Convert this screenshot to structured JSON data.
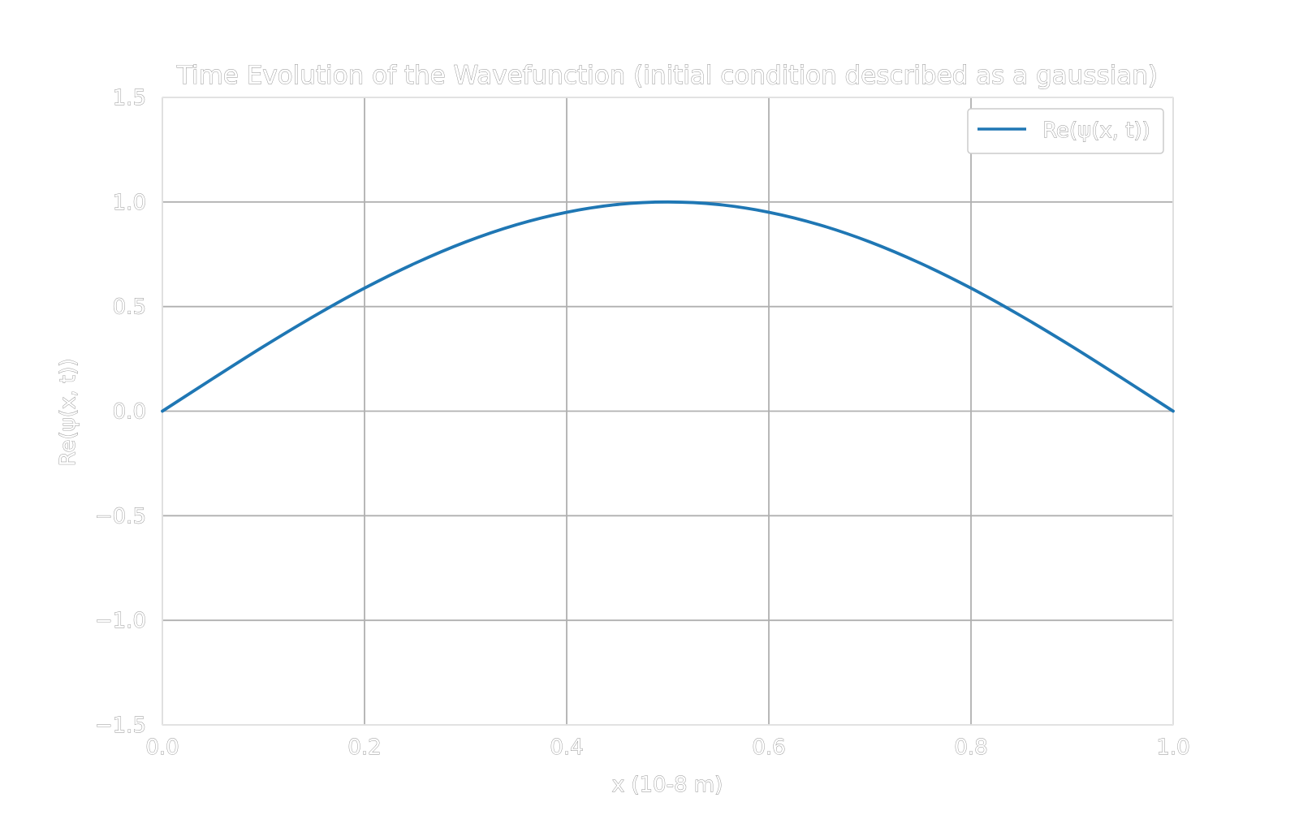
{
  "chart_data": {
    "type": "line",
    "title": "Time Evolution of the Wavefunction (initial condition described as a gaussian)",
    "xlabel": "x (10-8 m)",
    "ylabel": "Re(ψ(x, t))",
    "xlim": [
      0.0,
      1.0
    ],
    "ylim": [
      -1.5,
      1.5
    ],
    "xticks": [
      "0.0",
      "0.2",
      "0.4",
      "0.6",
      "0.8",
      "1.0"
    ],
    "yticks": [
      "1.5",
      "1.0",
      "0.5",
      "0.0",
      "−0.5",
      "−1.0",
      "−1.5"
    ],
    "grid": true,
    "legend_position": "top-right",
    "series": [
      {
        "name": "Re(ψ(x, t))",
        "color": "#1f77b4",
        "x": [
          0.0,
          0.05,
          0.1,
          0.15,
          0.2,
          0.25,
          0.3,
          0.35,
          0.4,
          0.45,
          0.5,
          0.55,
          0.6,
          0.65,
          0.7,
          0.75,
          0.8,
          0.85,
          0.9,
          0.95,
          1.0
        ],
        "y": [
          0.0,
          0.156,
          0.309,
          0.454,
          0.588,
          0.707,
          0.809,
          0.891,
          0.951,
          0.988,
          1.0,
          0.988,
          0.951,
          0.891,
          0.809,
          0.707,
          0.588,
          0.454,
          0.309,
          0.156,
          0.0
        ]
      }
    ]
  }
}
